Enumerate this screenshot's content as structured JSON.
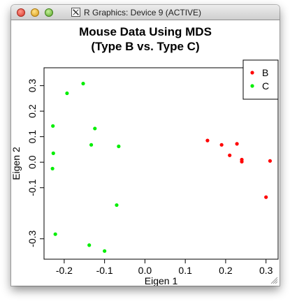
{
  "window": {
    "title": "R Graphics: Device 9 (ACTIVE)",
    "icon": "x11-icon"
  },
  "chart_data": {
    "type": "scatter",
    "title": "Mouse Data Using MDS",
    "subtitle": "(Type B vs. Type C)",
    "xlabel": "Eigen 1",
    "ylabel": "Eigen 2",
    "xlim": [
      -0.25,
      0.33
    ],
    "ylim": [
      -0.38,
      0.37
    ],
    "xticks": [
      -0.2,
      -0.1,
      0.0,
      0.1,
      0.2,
      0.3
    ],
    "xtick_labels": [
      "-0.2",
      "-0.1",
      "0.0",
      "0.1",
      "0.2",
      "0.3"
    ],
    "yticks": [
      -0.3,
      -0.1,
      0.0,
      0.1,
      0.2,
      0.3
    ],
    "ytick_labels": [
      "-0.3",
      "-0.1",
      "0.0",
      "0.1",
      "0.2",
      "0.3"
    ],
    "grid": false,
    "legend_position": "top-right",
    "series": [
      {
        "name": "B",
        "color": "#ff0000",
        "x": [
          0.155,
          0.19,
          0.21,
          0.228,
          0.24,
          0.24,
          0.3,
          0.31
        ],
        "y": [
          0.085,
          0.068,
          0.027,
          0.072,
          0.01,
          0.002,
          -0.137,
          0.005
        ]
      },
      {
        "name": "C",
        "color": "#00ee00",
        "x": [
          -0.153,
          -0.193,
          -0.228,
          -0.124,
          -0.227,
          -0.133,
          -0.065,
          -0.229,
          -0.07,
          -0.222,
          -0.138,
          -0.1
        ],
        "y": [
          0.308,
          0.27,
          0.142,
          0.132,
          0.035,
          0.068,
          0.062,
          -0.025,
          -0.168,
          -0.282,
          -0.325,
          -0.348
        ]
      }
    ]
  }
}
